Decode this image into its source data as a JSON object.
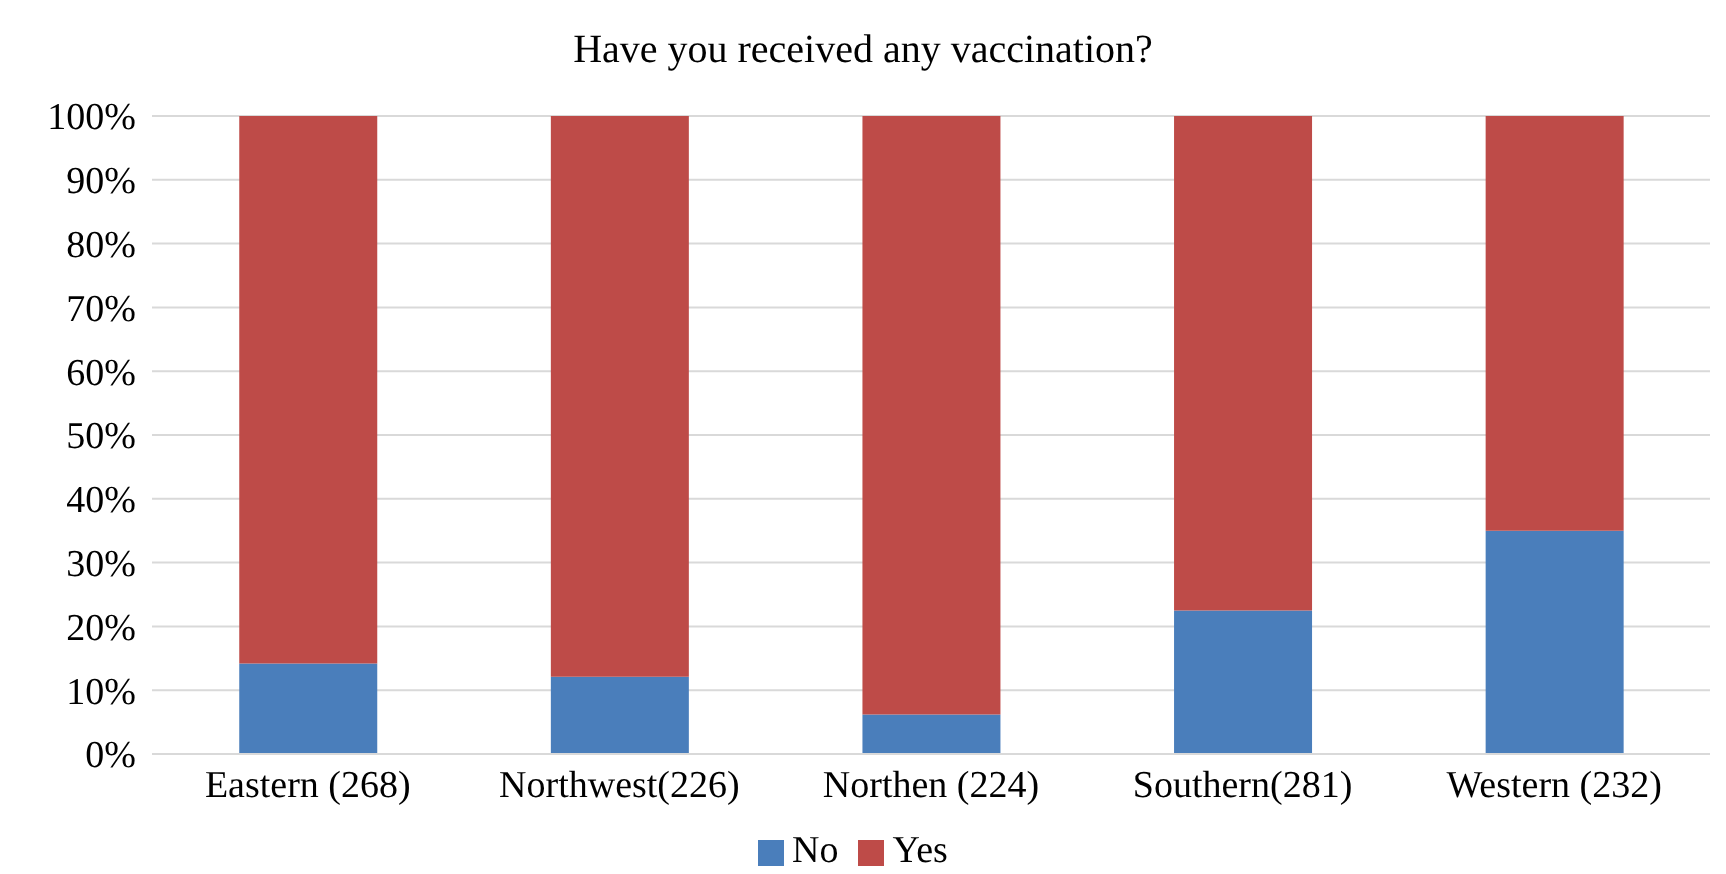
{
  "chart_data": {
    "type": "bar",
    "title": "Have you received any vaccination?",
    "categories": [
      "Eastern (268)",
      "Northwest(226)",
      "Northen (224)",
      "Southern(281)",
      "Western (232)"
    ],
    "stacked": true,
    "series": [
      {
        "name": "No",
        "color": "#4a7ebb",
        "values": [
          14.2,
          12.1,
          6.2,
          22.5,
          35
        ]
      },
      {
        "name": "Yes",
        "color": "#be4b48",
        "values": [
          85.8,
          87.9,
          93.8,
          77.5,
          65
        ]
      }
    ],
    "ylim": [
      0,
      100
    ],
    "yticks": [
      {
        "value": 0,
        "label": "0%"
      },
      {
        "value": 10,
        "label": "10%"
      },
      {
        "value": 20,
        "label": "20%"
      },
      {
        "value": 30,
        "label": "30%"
      },
      {
        "value": 40,
        "label": "40%"
      },
      {
        "value": 50,
        "label": "50%"
      },
      {
        "value": 60,
        "label": "60%"
      },
      {
        "value": 70,
        "label": "70%"
      },
      {
        "value": 80,
        "label": "80%"
      },
      {
        "value": 90,
        "label": "90%"
      },
      {
        "value": 100,
        "label": "100%"
      }
    ],
    "grid": "y",
    "legend": "bottom"
  }
}
